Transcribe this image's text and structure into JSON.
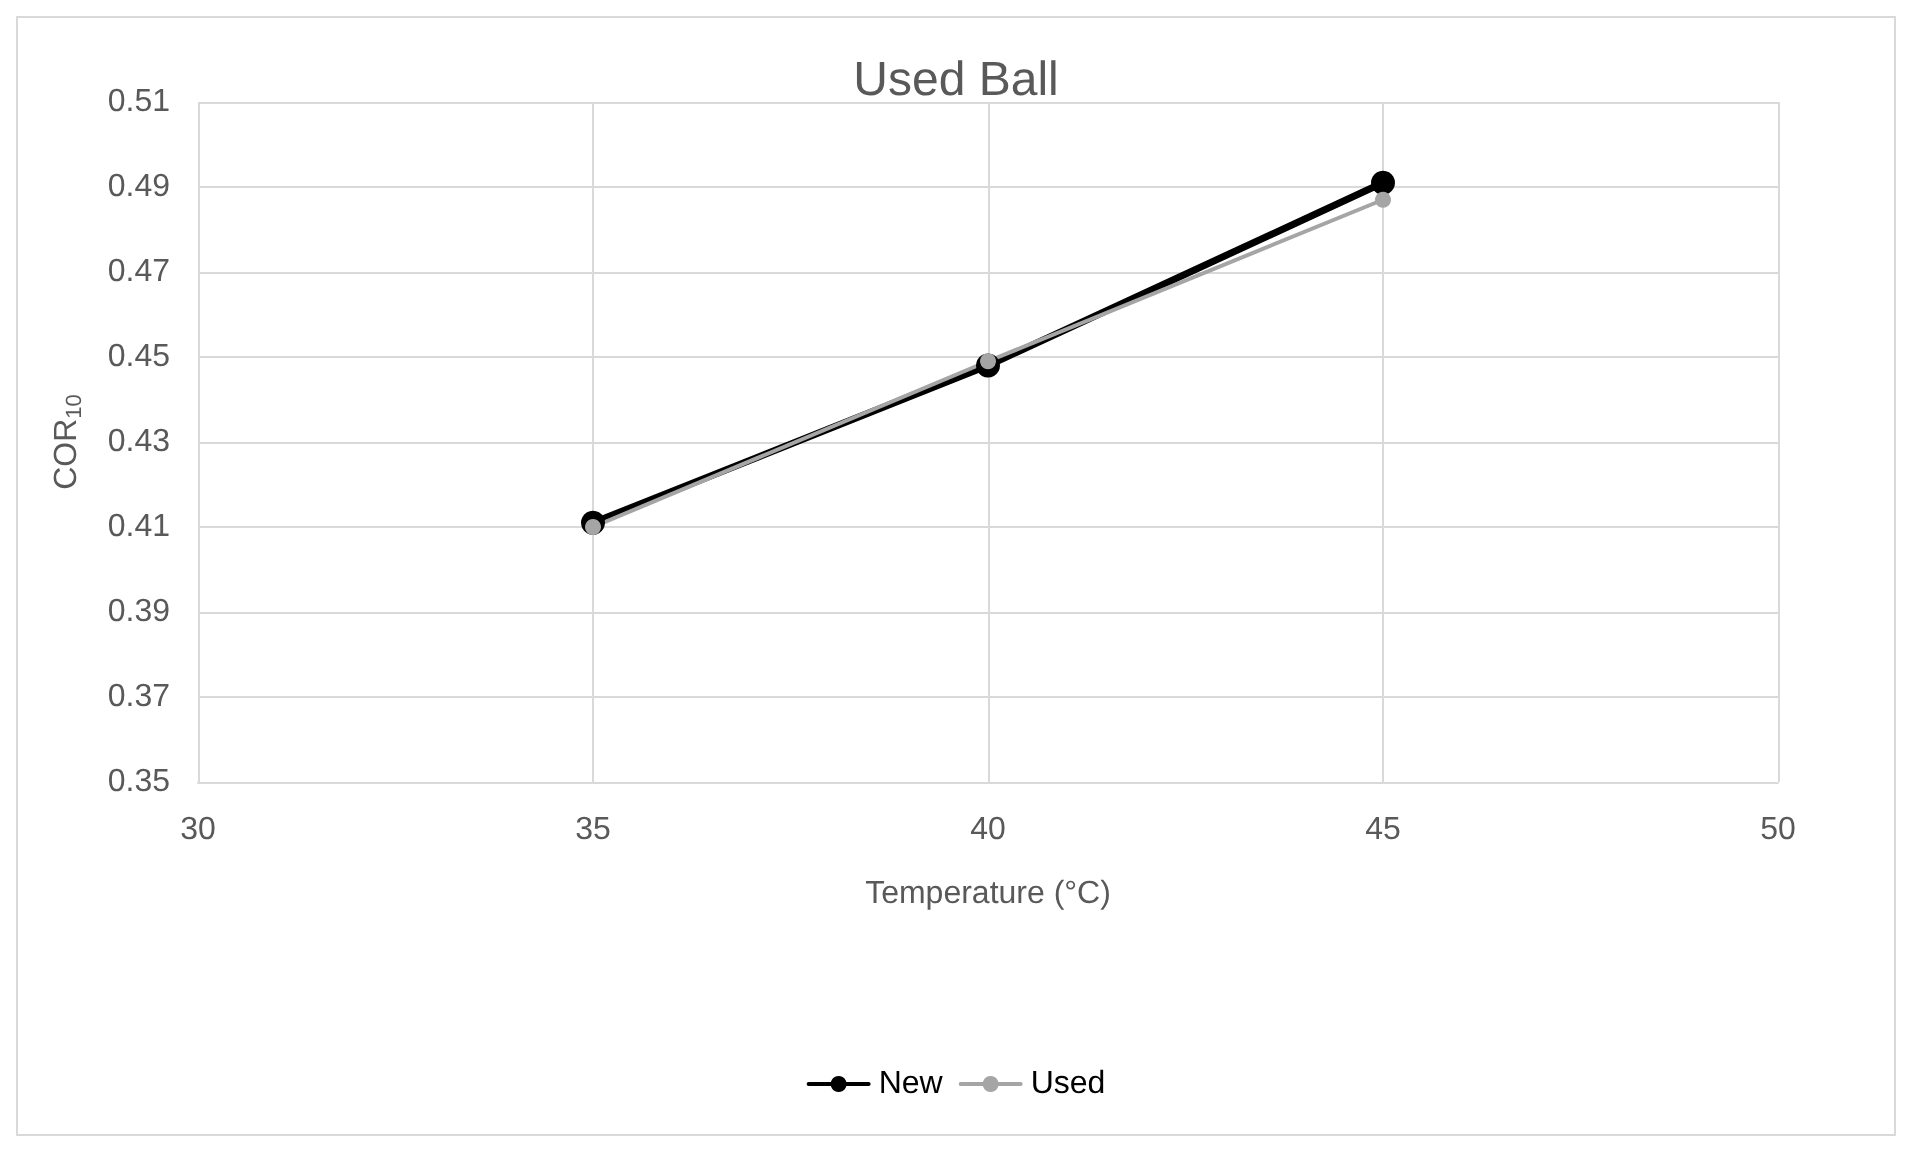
{
  "chart_data": {
    "type": "line",
    "title": "Used Ball",
    "xlabel": "Temperature (°C)",
    "ylabel": "COR$_{10}$",
    "xlim": [
      30,
      50
    ],
    "xticks": [
      30,
      35,
      40,
      45,
      50
    ],
    "ylim": [
      0.35,
      0.51
    ],
    "yticks": [
      0.35,
      0.37,
      0.39,
      0.41,
      0.43,
      0.45,
      0.47,
      0.49,
      0.51
    ],
    "x": [
      35,
      40,
      45
    ],
    "series": [
      {
        "name": "New",
        "color": "#000000",
        "values": [
          0.411,
          0.448,
          0.491
        ]
      },
      {
        "name": "Used",
        "color": "#a5a5a5",
        "values": [
          0.41,
          0.449,
          0.487
        ]
      }
    ],
    "grid": true,
    "legend": "bottom",
    "marker": "circle",
    "line_style": "solid"
  }
}
